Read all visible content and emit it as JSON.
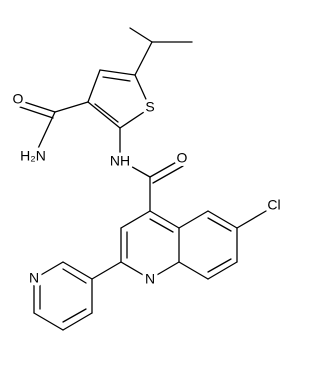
{
  "atoms": {
    "amide_oxygen": "O",
    "amide_nitrogen": "H₂N",
    "sulfur": "S",
    "linker_nh": "NH",
    "linker_oxygen": "O",
    "chlorine": "Cl",
    "quinoline_nitrogen": "N",
    "pyridine_nitrogen": "N"
  }
}
